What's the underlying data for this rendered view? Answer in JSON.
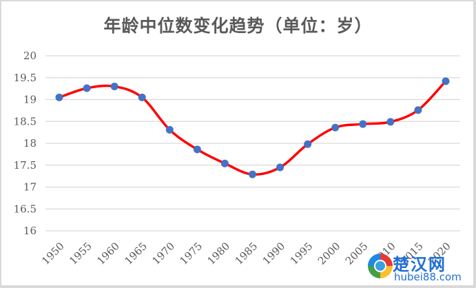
{
  "chart_data": {
    "type": "line",
    "title": "年龄中位数变化趋势（单位：岁）",
    "xlabel": "",
    "ylabel": "",
    "categories": [
      "1950",
      "1955",
      "1960",
      "1965",
      "1970",
      "1975",
      "1980",
      "1985",
      "1990",
      "1995",
      "2000",
      "2005",
      "2010",
      "2015",
      "2020"
    ],
    "series": [
      {
        "name": "年龄中位数",
        "values": [
          19.05,
          19.26,
          19.3,
          19.05,
          18.31,
          17.86,
          17.54,
          17.29,
          17.45,
          17.98,
          18.36,
          18.44,
          18.49,
          18.76,
          19.42
        ],
        "line_color": "#ff0000",
        "marker_color": "#4472c4",
        "smooth": true
      }
    ],
    "ylim": [
      16,
      20
    ],
    "yticks": [
      "16",
      "16.5",
      "17",
      "17.5",
      "18",
      "18.5",
      "19",
      "19.5",
      "20"
    ],
    "grid": true,
    "legend": "none"
  },
  "watermark": {
    "cn": "楚汉网",
    "en": "hubei88.com"
  }
}
